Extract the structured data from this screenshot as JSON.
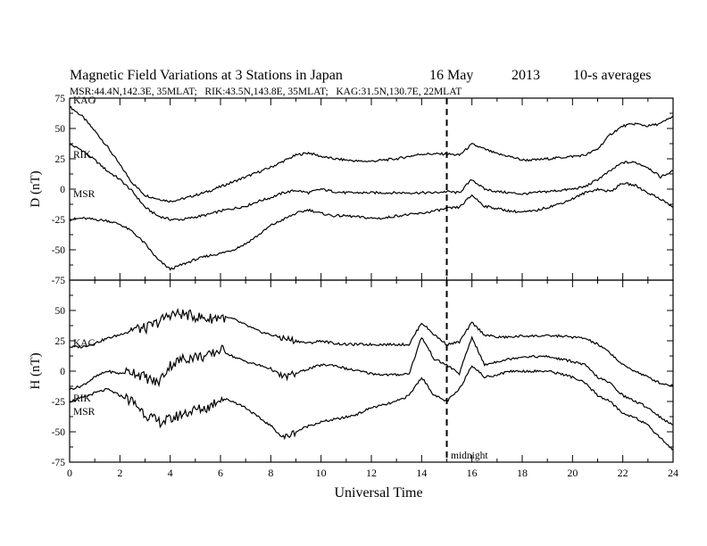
{
  "title": {
    "main": "Magnetic Field Variations at 3 Stations in Japan",
    "date_day": "16 May",
    "date_year": "2013",
    "averaging": "10-s averages",
    "subtitle": "MSR:44.4N,142.3E, 35MLAT;   RIK:43.5N,143.8E, 35MLAT;   KAG:31.5N,130.7E, 22MLAT"
  },
  "colors": {
    "ink": "#000000",
    "background": "#ffffff"
  },
  "chart_data": [
    {
      "type": "line",
      "panel": "top",
      "ylabel": "D (nT)",
      "ylim": [
        -75,
        75
      ],
      "yticks": [
        75,
        50,
        25,
        0,
        -25,
        -50,
        -75
      ],
      "xlim": [
        0,
        24
      ],
      "series": [
        {
          "name": "KAG",
          "x": [
            0,
            0.5,
            1,
            1.5,
            2,
            2.5,
            3,
            3.5,
            4,
            4.5,
            5,
            5.5,
            6,
            6.5,
            7,
            7.5,
            8,
            8.5,
            9,
            9.5,
            10,
            10.5,
            11,
            11.5,
            12,
            12.5,
            13,
            13.5,
            14,
            14.5,
            15,
            15.5,
            16,
            16.5,
            17,
            17.5,
            18,
            18.5,
            19,
            19.5,
            20,
            20.5,
            21,
            21.5,
            22,
            22.5,
            23,
            23.5,
            24
          ],
          "y": [
            68,
            60,
            48,
            35,
            20,
            5,
            -5,
            -8,
            -10,
            -8,
            -5,
            -2,
            2,
            6,
            10,
            14,
            18,
            23,
            28,
            30,
            27,
            25,
            24,
            23,
            23,
            24,
            25,
            27,
            29,
            29,
            29,
            28,
            37,
            33,
            29,
            27,
            24,
            24,
            25,
            26,
            27,
            28,
            33,
            45,
            52,
            54,
            52,
            54,
            60
          ]
        },
        {
          "name": "RIK",
          "x": [
            0,
            0.5,
            1,
            1.5,
            2,
            2.5,
            3,
            3.5,
            4,
            4.5,
            5,
            5.5,
            6,
            6.5,
            7,
            7.5,
            8,
            8.5,
            9,
            9.5,
            10,
            10.5,
            11,
            11.5,
            12,
            12.5,
            13,
            13.5,
            14,
            14.5,
            15,
            15.5,
            16,
            16.5,
            17,
            17.5,
            18,
            18.5,
            19,
            19.5,
            20,
            20.5,
            21,
            21.5,
            22,
            22.5,
            23,
            23.5,
            24
          ],
          "y": [
            37,
            32,
            24,
            15,
            8,
            -2,
            -15,
            -22,
            -25,
            -25,
            -23,
            -21,
            -18,
            -16,
            -14,
            -10,
            -7,
            -3,
            -1,
            -3,
            0,
            -2,
            -3,
            -3,
            -3,
            -3,
            -3,
            -3,
            -3,
            -3,
            -2,
            -3,
            8,
            0,
            -2,
            -3,
            -4,
            -3,
            -2,
            -1,
            0,
            2,
            8,
            15,
            22,
            22,
            18,
            10,
            15
          ]
        },
        {
          "name": "MSR",
          "x": [
            0,
            0.5,
            1,
            1.5,
            2,
            2.5,
            3,
            3.5,
            4,
            4.5,
            5,
            5.5,
            6,
            6.5,
            7,
            7.5,
            8,
            8.5,
            9,
            9.5,
            10,
            10.5,
            11,
            11.5,
            12,
            12.5,
            13,
            13.5,
            14,
            14.5,
            15,
            15.5,
            16,
            16.5,
            17,
            17.5,
            18,
            18.5,
            19,
            19.5,
            20,
            20.5,
            21,
            21.5,
            22,
            22.5,
            23,
            23.5,
            24
          ],
          "y": [
            -25,
            -24,
            -25,
            -26,
            -29,
            -35,
            -45,
            -58,
            -66,
            -62,
            -58,
            -55,
            -53,
            -50,
            -45,
            -38,
            -30,
            -25,
            -20,
            -17,
            -20,
            -22,
            -22,
            -23,
            -24,
            -24,
            -22,
            -21,
            -20,
            -18,
            -16,
            -15,
            -5,
            -14,
            -16,
            -18,
            -19,
            -18,
            -15,
            -12,
            -8,
            -3,
            0,
            -2,
            5,
            3,
            -3,
            -8,
            -15
          ]
        }
      ]
    },
    {
      "type": "line",
      "panel": "bottom",
      "xlabel": "Universal Time",
      "ylabel": "H (nT)",
      "ylim": [
        -75,
        75
      ],
      "yticks": [
        50,
        25,
        0,
        -25,
        -50,
        -75
      ],
      "xlim": [
        0,
        24
      ],
      "xticks": [
        0,
        2,
        4,
        6,
        8,
        10,
        12,
        14,
        16,
        18,
        20,
        22,
        24
      ],
      "series": [
        {
          "name": "KAG",
          "x": [
            0,
            0.5,
            1,
            1.5,
            2,
            2.5,
            3,
            3.5,
            4,
            4.5,
            5,
            5.5,
            6,
            6.5,
            7,
            7.5,
            8,
            8.5,
            9,
            9.5,
            10,
            10.5,
            11,
            11.5,
            12,
            12.5,
            13,
            13.5,
            14,
            14.5,
            15,
            15.5,
            16,
            16.5,
            17,
            17.5,
            18,
            18.5,
            19,
            19.5,
            20,
            20.5,
            21,
            21.5,
            22,
            22.5,
            23,
            23.5,
            24
          ],
          "y": [
            20,
            20,
            23,
            27,
            30,
            35,
            35,
            40,
            47,
            47,
            45,
            43,
            45,
            43,
            38,
            33,
            30,
            27,
            25,
            23,
            25,
            23,
            22,
            22,
            22,
            22,
            22,
            22,
            40,
            30,
            22,
            24,
            40,
            30,
            28,
            28,
            29,
            29,
            29,
            29,
            28,
            27,
            22,
            15,
            5,
            0,
            -5,
            -10,
            -12
          ]
        },
        {
          "name": "RIK",
          "x": [
            0,
            0.5,
            1,
            1.5,
            2,
            2.5,
            3,
            3.5,
            4,
            4.5,
            5,
            5.5,
            6,
            6.5,
            7,
            7.5,
            8,
            8.5,
            9,
            9.5,
            10,
            10.5,
            11,
            11.5,
            12,
            12.5,
            13,
            13.5,
            14,
            14.5,
            15,
            15.5,
            16,
            16.5,
            17,
            17.5,
            18,
            18.5,
            19,
            19.5,
            20,
            20.5,
            21,
            21.5,
            22,
            22.5,
            23,
            23.5,
            24
          ],
          "y": [
            -15,
            -12,
            -5,
            0,
            -2,
            0,
            -5,
            -10,
            5,
            10,
            12,
            12,
            18,
            12,
            8,
            5,
            2,
            -5,
            -2,
            2,
            5,
            5,
            2,
            0,
            -2,
            -3,
            -3,
            -2,
            28,
            10,
            5,
            -2,
            28,
            5,
            8,
            10,
            12,
            12,
            12,
            10,
            8,
            5,
            -5,
            -10,
            -20,
            -25,
            -30,
            -38,
            -45
          ]
        },
        {
          "name": "MSR",
          "x": [
            0,
            0.5,
            1,
            1.5,
            2,
            2.5,
            3,
            3.5,
            4,
            4.5,
            5,
            5.5,
            6,
            6.5,
            7,
            7.5,
            8,
            8.5,
            9,
            9.5,
            10,
            10.5,
            11,
            11.5,
            12,
            12.5,
            13,
            13.5,
            14,
            14.5,
            15,
            15.5,
            16,
            16.5,
            17,
            17.5,
            18,
            18.5,
            19,
            19.5,
            20,
            20.5,
            21,
            21.5,
            22,
            22.5,
            23,
            23.5,
            24
          ],
          "y": [
            -25,
            -22,
            -18,
            -15,
            -20,
            -25,
            -35,
            -42,
            -40,
            -35,
            -32,
            -30,
            -22,
            -25,
            -30,
            -38,
            -45,
            -55,
            -50,
            -45,
            -42,
            -40,
            -38,
            -35,
            -30,
            -28,
            -25,
            -20,
            -5,
            -20,
            -25,
            -15,
            5,
            -5,
            -3,
            0,
            0,
            0,
            0,
            -2,
            -5,
            -10,
            -20,
            -25,
            -35,
            -38,
            -45,
            -55,
            -65
          ]
        }
      ]
    }
  ],
  "annotations": {
    "midnight_x": 15,
    "midnight_label": "midnight"
  }
}
